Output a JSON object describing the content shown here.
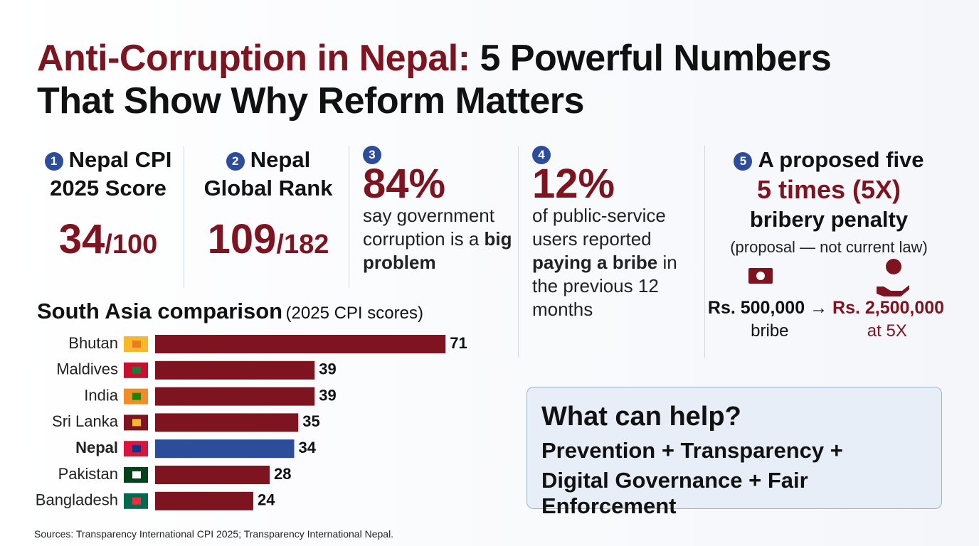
{
  "header": {
    "title_highlight": "Anti-Corruption in Nepal:",
    "title_rest": "5 Powerful Numbers",
    "title_line2": "That Show Why Reform Matters"
  },
  "stats": [
    {
      "badge": "1",
      "label": "Nepal CPI 2025 Score",
      "value": "34",
      "suffix": "/100"
    },
    {
      "badge": "2",
      "label": "Nepal Global Rank",
      "value": "109",
      "suffix": "/182"
    },
    {
      "badge": "3",
      "value": "84%",
      "text": "say government corruption is a",
      "bold": "big problem"
    },
    {
      "badge": "4",
      "value": "12%",
      "text": "of public-service users reported",
      "bold": "paying a bribe",
      "text_after": "in the previous 12 months"
    },
    {
      "badge": "5",
      "label": "A proposed five",
      "highlight": "5 times (5X)",
      "label2": "bribery penalty",
      "note": "(proposal — not current law)",
      "from_value": "Rs. 500,000",
      "arrow": "→",
      "to_value": "Rs. 2,500,000",
      "from_caption": "bribe",
      "to_caption": "at 5X"
    }
  ],
  "chart_data": {
    "type": "bar",
    "orientation": "horizontal",
    "title": "South Asia comparison",
    "subtitle": "(2025 CPI scores)",
    "categories": [
      "Bhutan",
      "Maldives",
      "India",
      "Sri Lanka",
      "Nepal",
      "Pakistan",
      "Bangladesh"
    ],
    "values": [
      71,
      39,
      39,
      35,
      34,
      28,
      24
    ],
    "color": "#7d1420",
    "highlight": {
      "index": 4,
      "color": "#2c4d9a"
    }
  },
  "help": {
    "title": "What can help?",
    "line1": "Prevention + Transparency +",
    "line2": "Digital Governance + Fair Enforcement"
  },
  "sources": "Sources: Transparency International CPI 2025; Transparency International Nepal."
}
